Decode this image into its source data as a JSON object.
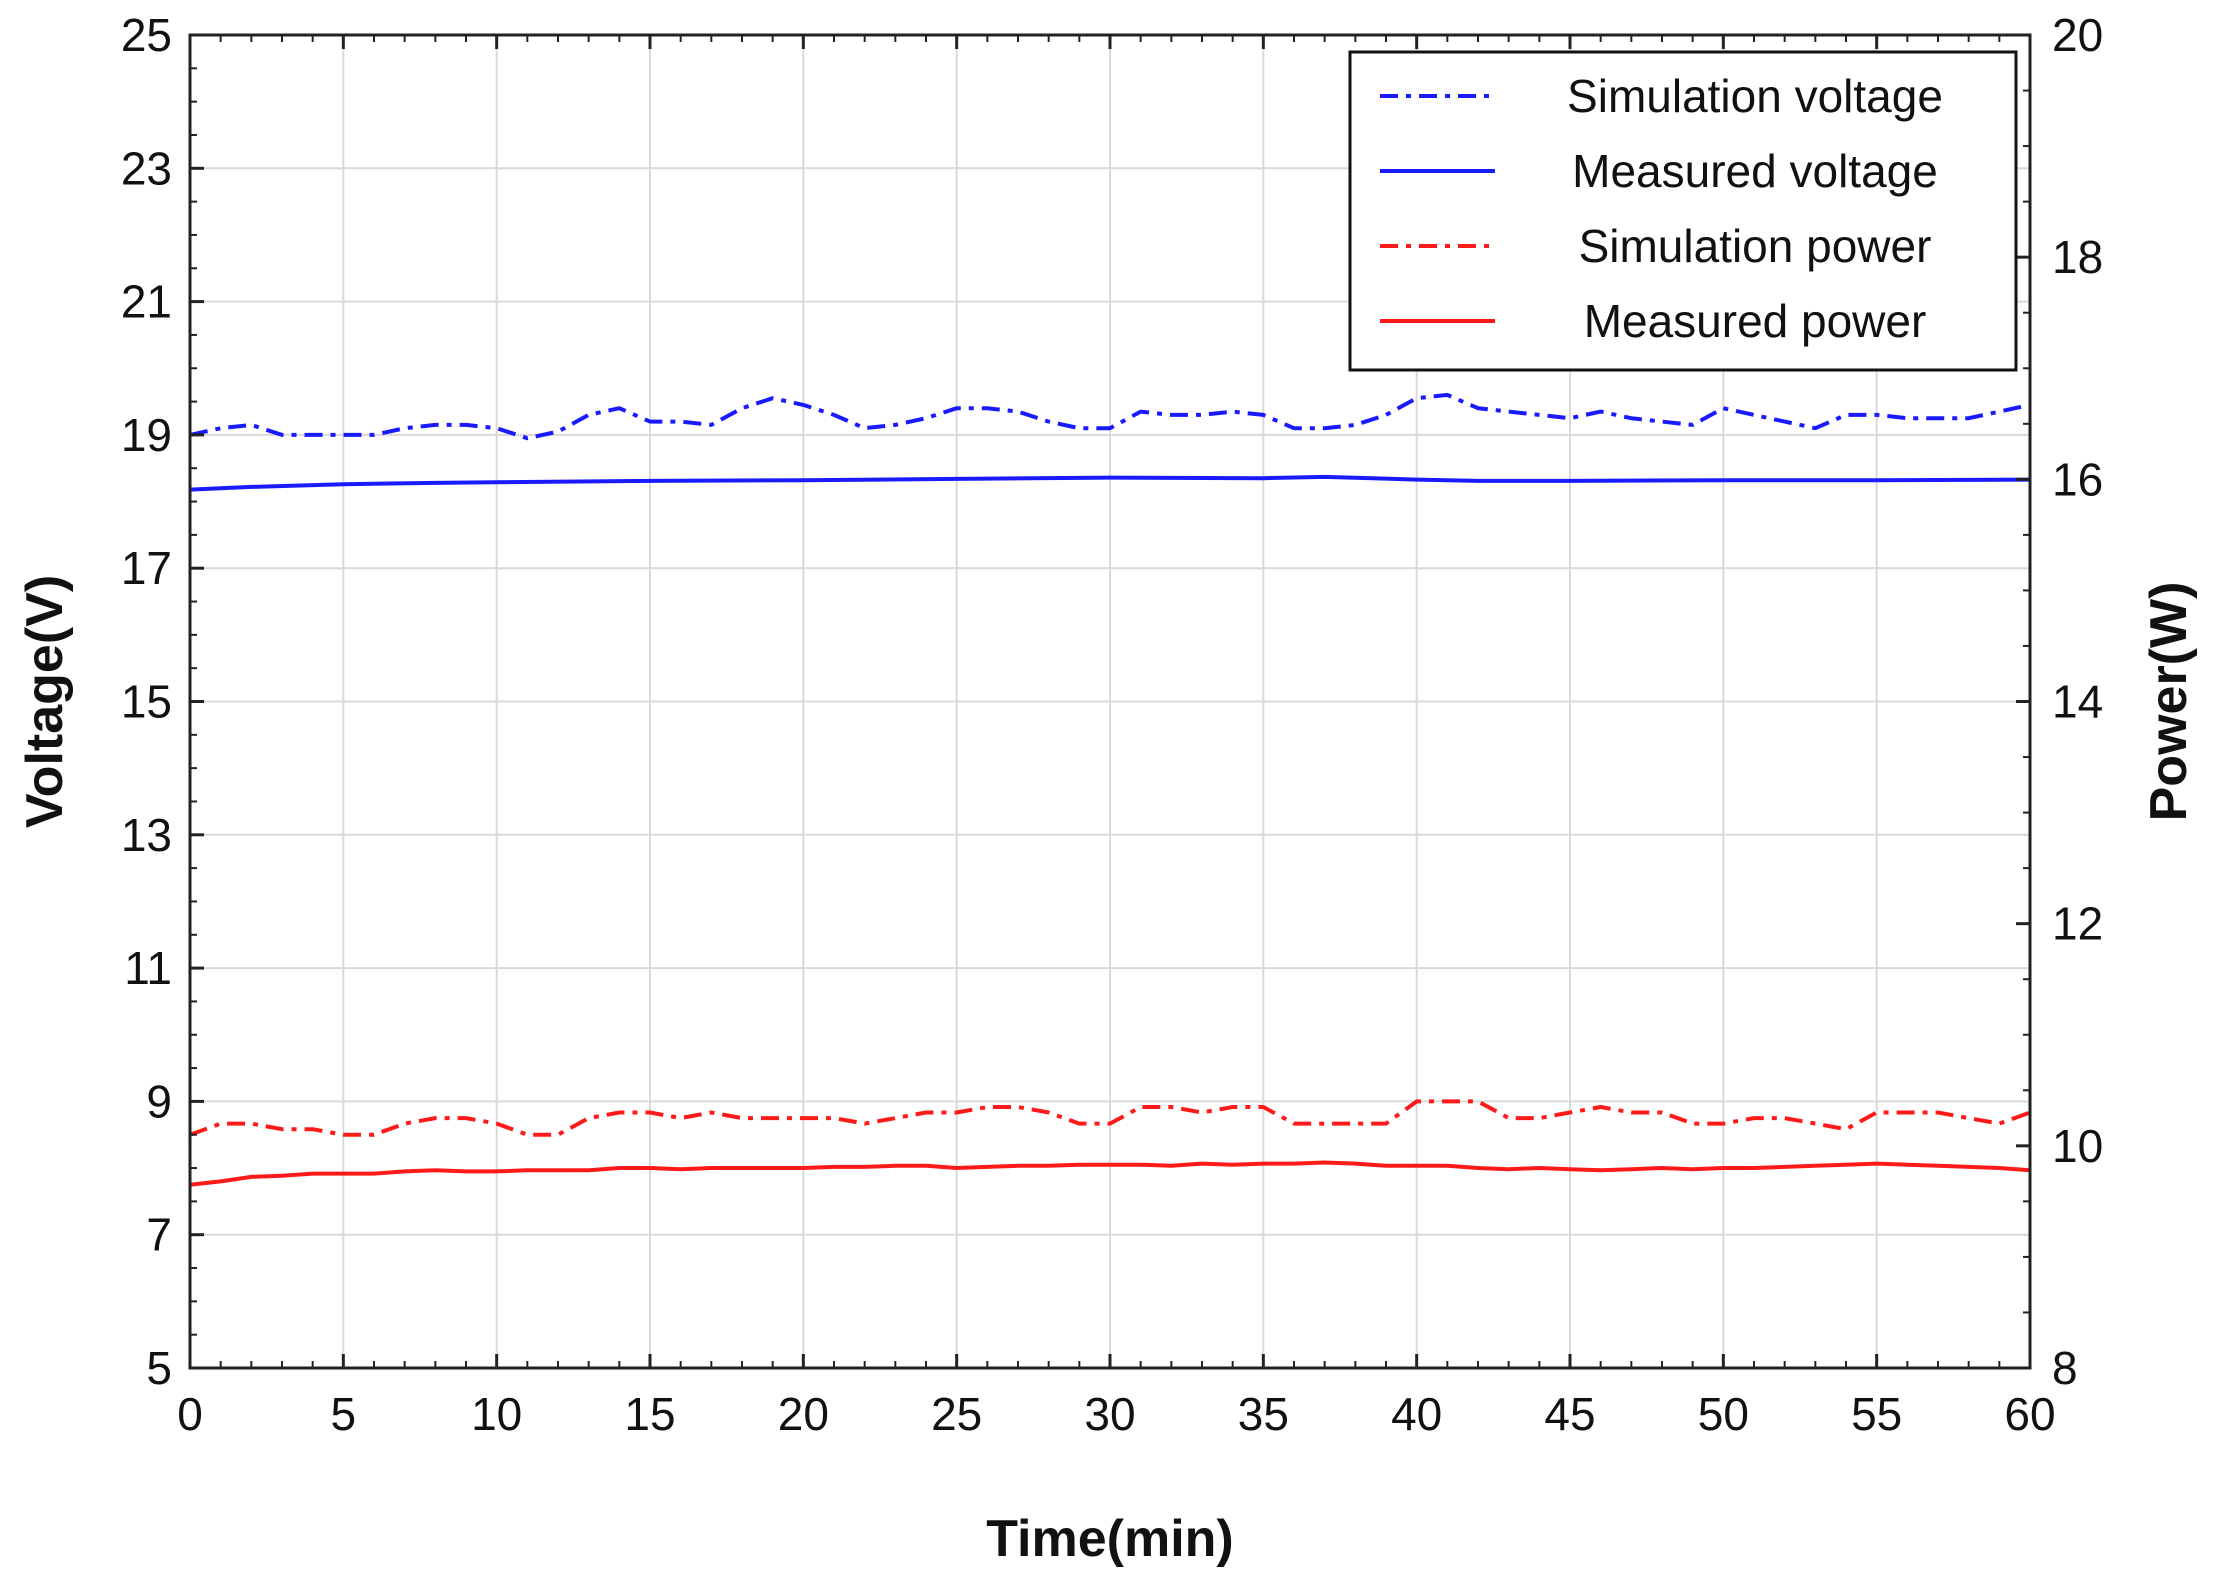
{
  "chart_data": {
    "type": "line",
    "xlabel": "Time(min)",
    "ylabel_left": "Voltage(V)",
    "ylabel_right": "Power(W)",
    "xlim": [
      0,
      60
    ],
    "ylim_left": [
      5,
      25
    ],
    "ylim_right": [
      8,
      20
    ],
    "x_ticks": [
      0,
      5,
      10,
      15,
      20,
      25,
      30,
      35,
      40,
      45,
      50,
      55,
      60
    ],
    "y_left_ticks": [
      5,
      7,
      9,
      11,
      13,
      15,
      17,
      19,
      21,
      23,
      25
    ],
    "y_right_ticks": [
      8,
      10,
      12,
      14,
      16,
      18,
      20
    ],
    "grid": true,
    "legend_position": "top-right",
    "colors": {
      "blue": "#1a1aff",
      "red": "#ff1a1a"
    },
    "series": [
      {
        "name": "Simulation voltage",
        "axis": "left",
        "style": "dash-dot",
        "color": "#1a1aff",
        "x": [
          0,
          1,
          2,
          3,
          4,
          5,
          6,
          7,
          8,
          9,
          10,
          11,
          12,
          13,
          14,
          15,
          16,
          17,
          18,
          19,
          20,
          21,
          22,
          23,
          24,
          25,
          26,
          27,
          28,
          29,
          30,
          31,
          32,
          33,
          34,
          35,
          36,
          37,
          38,
          39,
          40,
          41,
          42,
          43,
          44,
          45,
          46,
          47,
          48,
          49,
          50,
          51,
          52,
          53,
          54,
          55,
          56,
          57,
          58,
          59,
          60
        ],
        "values": [
          19.0,
          19.1,
          19.15,
          19.0,
          19.0,
          19.0,
          19.0,
          19.1,
          19.15,
          19.15,
          19.1,
          18.95,
          19.05,
          19.3,
          19.4,
          19.2,
          19.2,
          19.15,
          19.4,
          19.55,
          19.45,
          19.3,
          19.1,
          19.15,
          19.25,
          19.4,
          19.4,
          19.35,
          19.2,
          19.1,
          19.1,
          19.35,
          19.3,
          19.3,
          19.35,
          19.3,
          19.1,
          19.1,
          19.15,
          19.3,
          19.55,
          19.6,
          19.4,
          19.35,
          19.3,
          19.25,
          19.35,
          19.25,
          19.2,
          19.15,
          19.4,
          19.3,
          19.2,
          19.1,
          19.3,
          19.3,
          19.25,
          19.25,
          19.25,
          19.35,
          19.45
        ]
      },
      {
        "name": "Measured voltage",
        "axis": "left",
        "style": "solid",
        "color": "#1a1aff",
        "x": [
          0,
          2,
          5,
          8,
          10,
          15,
          20,
          25,
          30,
          35,
          37,
          40,
          42,
          45,
          50,
          55,
          60
        ],
        "values": [
          18.18,
          18.22,
          18.26,
          18.28,
          18.29,
          18.31,
          18.32,
          18.34,
          18.36,
          18.35,
          18.37,
          18.33,
          18.31,
          18.31,
          18.32,
          18.32,
          18.33
        ]
      },
      {
        "name": "Simulation power",
        "axis": "right",
        "style": "dash-dot",
        "color": "#ff1a1a",
        "x": [
          0,
          1,
          2,
          3,
          4,
          5,
          6,
          7,
          8,
          9,
          10,
          11,
          12,
          13,
          14,
          15,
          16,
          17,
          18,
          19,
          20,
          21,
          22,
          23,
          24,
          25,
          26,
          27,
          28,
          29,
          30,
          31,
          32,
          33,
          34,
          35,
          36,
          37,
          38,
          39,
          40,
          41,
          42,
          43,
          44,
          45,
          46,
          47,
          48,
          49,
          50,
          51,
          52,
          53,
          54,
          55,
          56,
          57,
          58,
          59,
          60
        ],
        "values": [
          10.1,
          10.2,
          10.2,
          10.15,
          10.15,
          10.1,
          10.1,
          10.2,
          10.25,
          10.25,
          10.2,
          10.1,
          10.1,
          10.25,
          10.3,
          10.3,
          10.25,
          10.3,
          10.25,
          10.25,
          10.25,
          10.25,
          10.2,
          10.25,
          10.3,
          10.3,
          10.35,
          10.35,
          10.3,
          10.2,
          10.2,
          10.35,
          10.35,
          10.3,
          10.35,
          10.35,
          10.2,
          10.2,
          10.2,
          10.2,
          10.4,
          10.4,
          10.4,
          10.25,
          10.25,
          10.3,
          10.35,
          10.3,
          10.3,
          10.2,
          10.2,
          10.25,
          10.25,
          10.2,
          10.15,
          10.3,
          10.3,
          10.3,
          10.25,
          10.2,
          10.3
        ]
      },
      {
        "name": "Measured power",
        "axis": "right",
        "style": "solid",
        "color": "#ff1a1a",
        "x": [
          0,
          1,
          2,
          3,
          4,
          5,
          6,
          7,
          8,
          9,
          10,
          11,
          12,
          13,
          14,
          15,
          16,
          17,
          18,
          19,
          20,
          21,
          22,
          23,
          24,
          25,
          26,
          27,
          28,
          29,
          30,
          31,
          32,
          33,
          34,
          35,
          36,
          37,
          38,
          39,
          40,
          41,
          42,
          43,
          44,
          45,
          46,
          47,
          48,
          49,
          50,
          51,
          52,
          53,
          54,
          55,
          56,
          57,
          58,
          59,
          60
        ],
        "values": [
          9.65,
          9.68,
          9.72,
          9.73,
          9.75,
          9.75,
          9.75,
          9.77,
          9.78,
          9.77,
          9.77,
          9.78,
          9.78,
          9.78,
          9.8,
          9.8,
          9.79,
          9.8,
          9.8,
          9.8,
          9.8,
          9.81,
          9.81,
          9.82,
          9.82,
          9.8,
          9.81,
          9.82,
          9.82,
          9.83,
          9.83,
          9.83,
          9.82,
          9.84,
          9.83,
          9.84,
          9.84,
          9.85,
          9.84,
          9.82,
          9.82,
          9.82,
          9.8,
          9.79,
          9.8,
          9.79,
          9.78,
          9.79,
          9.8,
          9.79,
          9.8,
          9.8,
          9.81,
          9.82,
          9.83,
          9.84,
          9.83,
          9.82,
          9.81,
          9.8,
          9.78
        ]
      }
    ]
  }
}
